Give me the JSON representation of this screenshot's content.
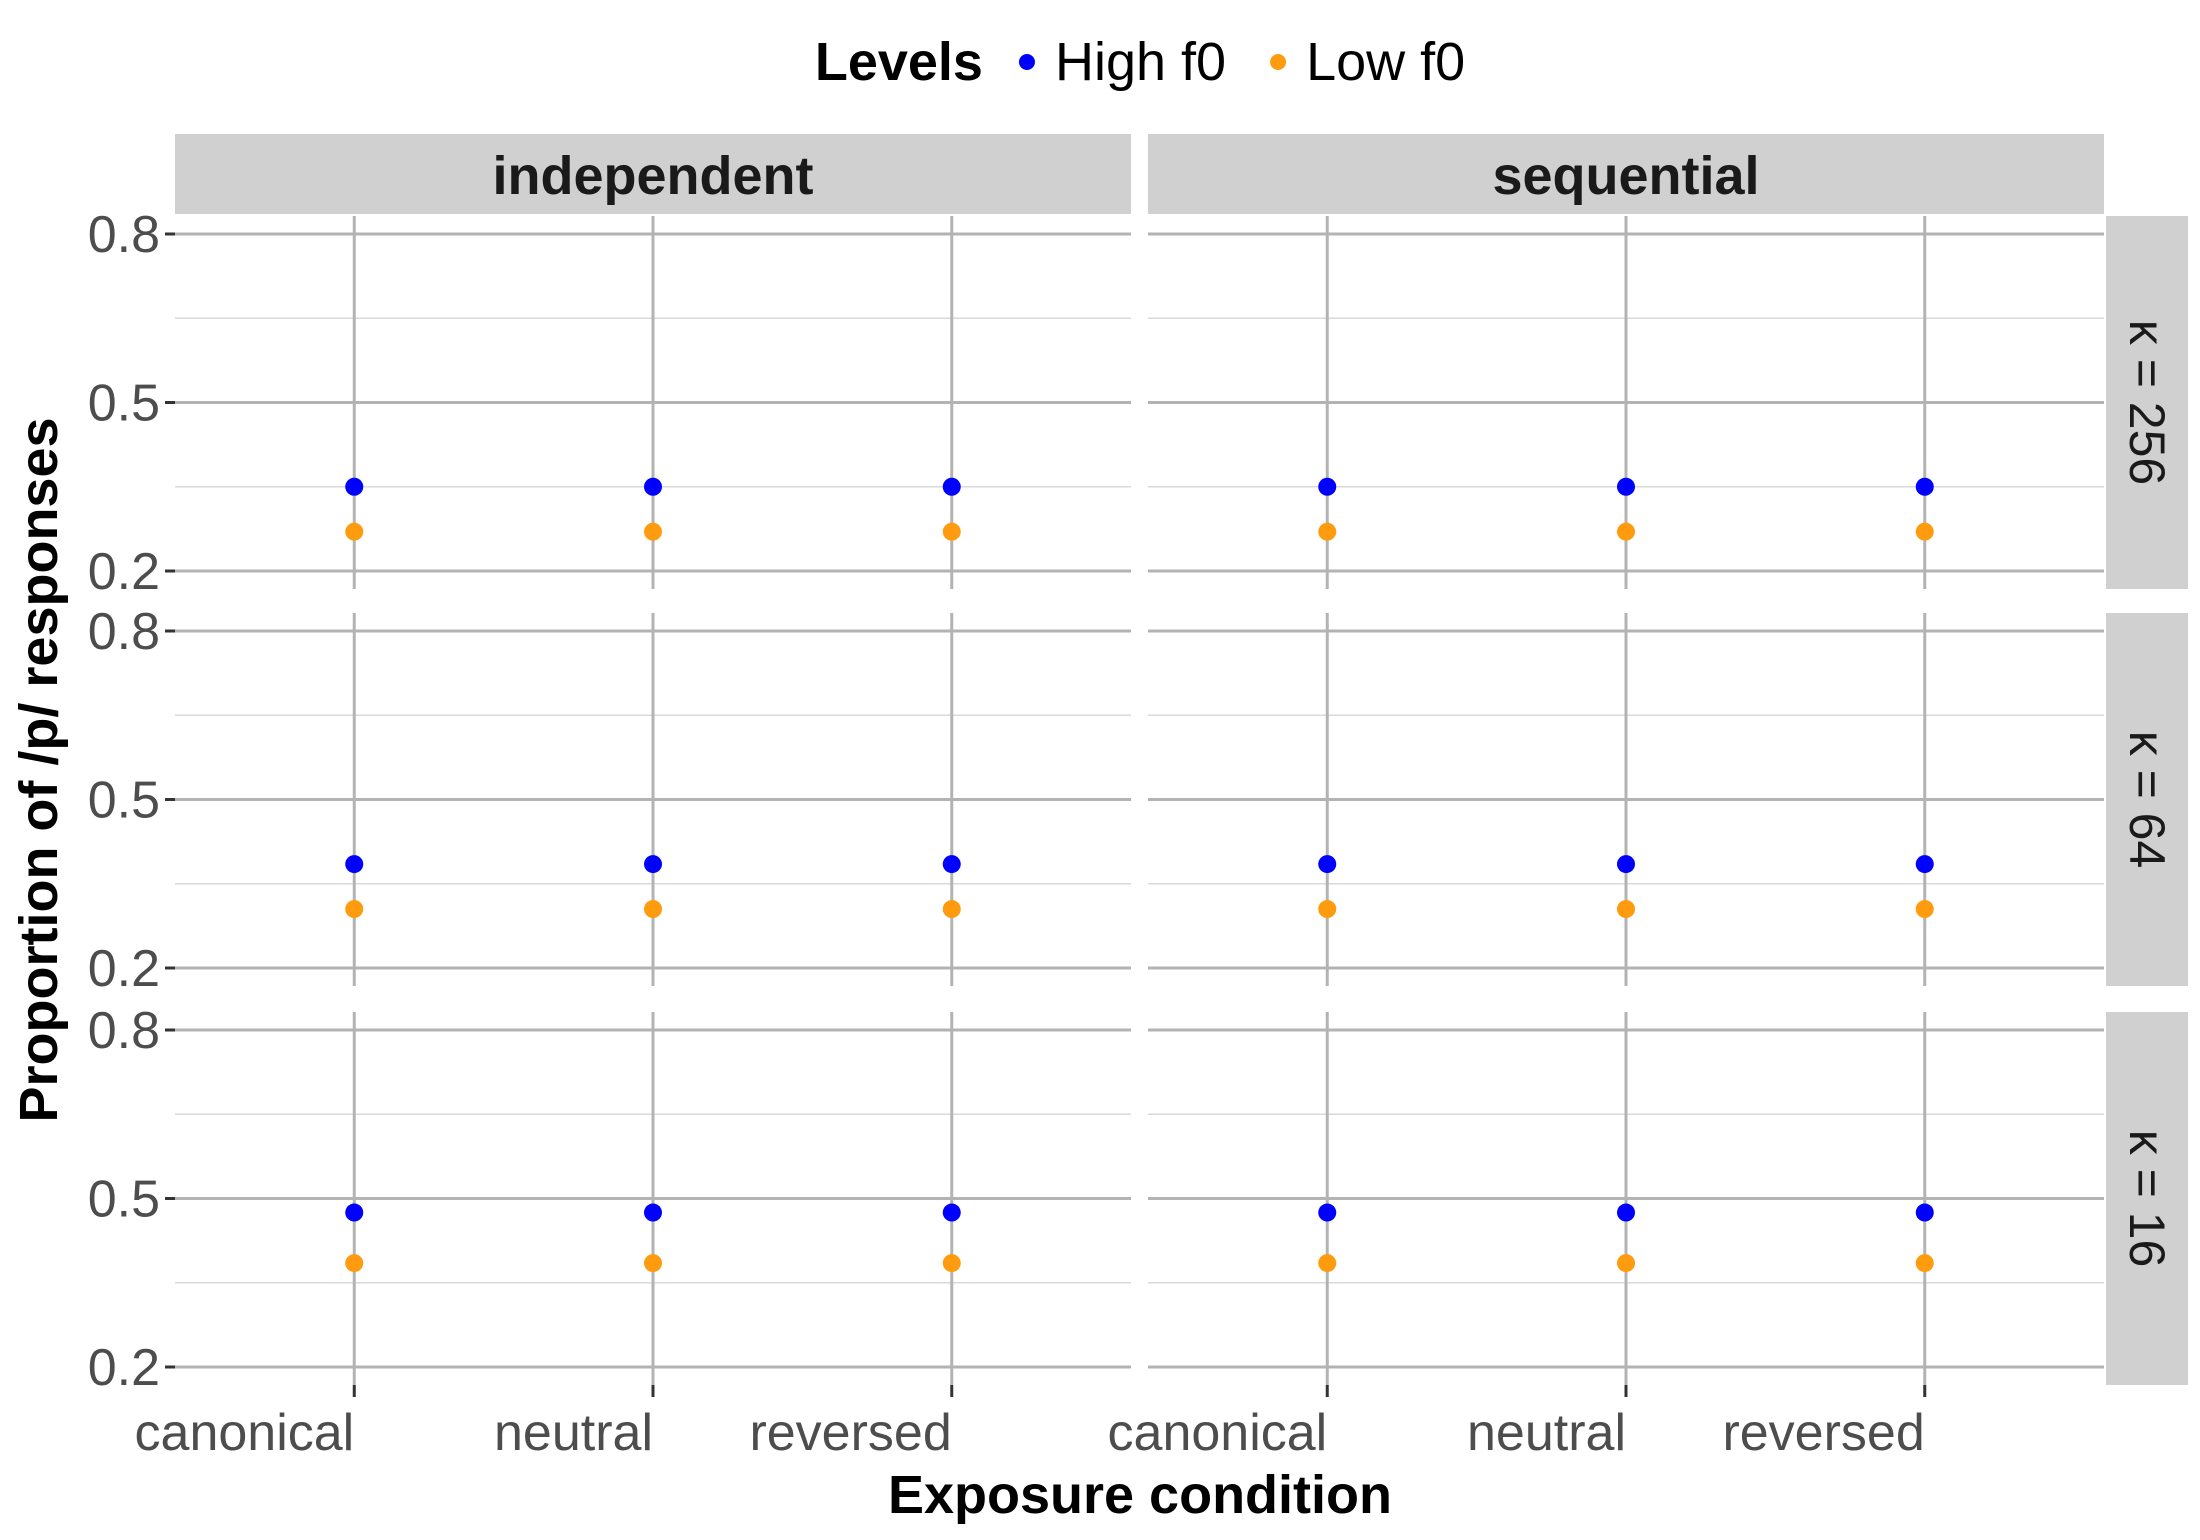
{
  "chart_data": {
    "type": "scatter",
    "xlabel": "Exposure condition",
    "ylabel": "Proportion of /p/ responses",
    "categories": [
      "canonical",
      "neutral",
      "reversed"
    ],
    "yticks": [
      "0.2",
      "0.5",
      "0.8"
    ],
    "ylim": [
      0.2,
      0.8
    ],
    "grid": true,
    "legend": {
      "title": "Levels",
      "position": "top",
      "entries": [
        {
          "label": "High f0",
          "color": "#0000ff"
        },
        {
          "label": "Low f0",
          "color": "#ff9b0f"
        }
      ]
    },
    "facet_columns": [
      "independent",
      "sequential"
    ],
    "facet_rows": [
      "κ = 256",
      "κ = 64",
      "κ = 16"
    ],
    "series": [
      {
        "name": "High f0",
        "color": "#0000ff",
        "values_by_row": [
          [
            0.35,
            0.35,
            0.35
          ],
          [
            0.385,
            0.385,
            0.385
          ],
          [
            0.475,
            0.475,
            0.475
          ]
        ]
      },
      {
        "name": "Low f0",
        "color": "#ff9b0f",
        "values_by_row": [
          [
            0.27,
            0.27,
            0.27
          ],
          [
            0.305,
            0.305,
            0.305
          ],
          [
            0.385,
            0.385,
            0.385
          ]
        ]
      }
    ]
  }
}
